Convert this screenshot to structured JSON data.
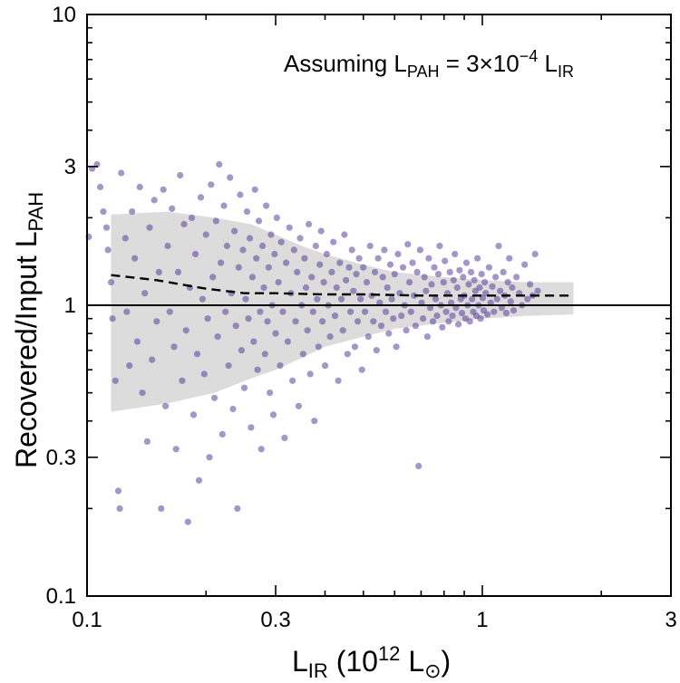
{
  "chart_data": {
    "type": "scatter",
    "title": "",
    "xlabel": {
      "main": "L",
      "sub": "IR",
      "rest": " (10",
      "sup": "12",
      "unit": " L",
      "symbol": "⊙",
      "close": ")"
    },
    "ylabel": {
      "main": "Recovered/Input L",
      "sub": "PAH"
    },
    "annotation": {
      "pre": "Assuming L",
      "sub1": "PAH",
      "mid": " = 3×10",
      "sup": "−4",
      "post": " L",
      "sub2": "IR"
    },
    "xscale": "log",
    "yscale": "log",
    "xlim": [
      0.1,
      3
    ],
    "ylim": [
      0.1,
      10
    ],
    "xticks": [
      {
        "v": 0.1,
        "label": "0.1"
      },
      {
        "v": 0.3,
        "label": "0.3"
      },
      {
        "v": 1,
        "label": "1"
      },
      {
        "v": 3,
        "label": "3"
      }
    ],
    "yticks": [
      {
        "v": 0.1,
        "label": "0.1"
      },
      {
        "v": 0.3,
        "label": "0.3"
      },
      {
        "v": 1,
        "label": "1"
      },
      {
        "v": 3,
        "label": "3"
      },
      {
        "v": 10,
        "label": "10"
      }
    ],
    "grid": false,
    "reference_line_y": 1,
    "colors": {
      "points": "#5b3f9a",
      "band": "#dcdcdc",
      "median": "#000000",
      "reference": "#000000"
    },
    "band": {
      "x": [
        0.115,
        0.16,
        0.21,
        0.26,
        0.3,
        0.35,
        0.4,
        0.5,
        0.6,
        0.8,
        1.0,
        1.3,
        1.7
      ],
      "upper": [
        2.05,
        2.1,
        2.0,
        1.9,
        1.75,
        1.6,
        1.5,
        1.38,
        1.3,
        1.25,
        1.22,
        1.2,
        1.2
      ],
      "lower": [
        0.43,
        0.46,
        0.5,
        0.56,
        0.6,
        0.66,
        0.72,
        0.78,
        0.83,
        0.87,
        0.9,
        0.92,
        0.93
      ]
    },
    "median": {
      "x": [
        0.115,
        0.15,
        0.2,
        0.25,
        0.3,
        0.4,
        0.5,
        0.7,
        1.0,
        1.3,
        1.7
      ],
      "y": [
        1.27,
        1.22,
        1.14,
        1.1,
        1.1,
        1.09,
        1.09,
        1.08,
        1.08,
        1.08,
        1.08
      ]
    },
    "points": [
      [
        0.101,
        1.72
      ],
      [
        0.103,
        2.95
      ],
      [
        0.106,
        3.05
      ],
      [
        0.108,
        2.55
      ],
      [
        0.11,
        2.1
      ],
      [
        0.112,
        1.85
      ],
      [
        0.113,
        1.55
      ],
      [
        0.115,
        1.2
      ],
      [
        0.116,
        0.9
      ],
      [
        0.118,
        0.55
      ],
      [
        0.12,
        0.23
      ],
      [
        0.121,
        0.2
      ],
      [
        0.122,
        2.85
      ],
      [
        0.125,
        1.7
      ],
      [
        0.126,
        0.95
      ],
      [
        0.128,
        0.62
      ],
      [
        0.13,
        2.1
      ],
      [
        0.132,
        1.45
      ],
      [
        0.134,
        0.75
      ],
      [
        0.136,
        2.55
      ],
      [
        0.138,
        0.5
      ],
      [
        0.14,
        1.1
      ],
      [
        0.142,
        0.34
      ],
      [
        0.144,
        1.85
      ],
      [
        0.146,
        0.65
      ],
      [
        0.148,
        2.3
      ],
      [
        0.15,
        0.88
      ],
      [
        0.152,
        1.3
      ],
      [
        0.154,
        0.2
      ],
      [
        0.156,
        2.5
      ],
      [
        0.158,
        0.45
      ],
      [
        0.16,
        1.6
      ],
      [
        0.162,
        0.95
      ],
      [
        0.164,
        2.15
      ],
      [
        0.166,
        0.72
      ],
      [
        0.168,
        0.32
      ],
      [
        0.17,
        1.3
      ],
      [
        0.172,
        2.8
      ],
      [
        0.174,
        0.55
      ],
      [
        0.176,
        1.9
      ],
      [
        0.178,
        0.82
      ],
      [
        0.18,
        0.18
      ],
      [
        0.182,
        1.15
      ],
      [
        0.184,
        2.0
      ],
      [
        0.186,
        0.42
      ],
      [
        0.188,
        1.5
      ],
      [
        0.19,
        0.68
      ],
      [
        0.192,
        0.25
      ],
      [
        0.194,
        2.35
      ],
      [
        0.196,
        1.05
      ],
      [
        0.198,
        0.58
      ],
      [
        0.2,
        1.75
      ],
      [
        0.202,
        0.9
      ],
      [
        0.204,
        0.3
      ],
      [
        0.206,
        2.6
      ],
      [
        0.208,
        1.25
      ],
      [
        0.21,
        0.48
      ],
      [
        0.212,
        1.95
      ],
      [
        0.214,
        0.78
      ],
      [
        0.216,
        3.05
      ],
      [
        0.218,
        1.4
      ],
      [
        0.22,
        0.36
      ],
      [
        0.222,
        2.2
      ],
      [
        0.224,
        0.95
      ],
      [
        0.226,
        1.6
      ],
      [
        0.228,
        0.62
      ],
      [
        0.23,
        2.75
      ],
      [
        0.232,
        1.1
      ],
      [
        0.234,
        0.44
      ],
      [
        0.236,
        1.8
      ],
      [
        0.238,
        0.85
      ],
      [
        0.24,
        0.2
      ],
      [
        0.242,
        1.35
      ],
      [
        0.244,
        2.4
      ],
      [
        0.246,
        0.7
      ],
      [
        0.248,
        1.55
      ],
      [
        0.25,
        0.52
      ],
      [
        0.252,
        1.05
      ],
      [
        0.254,
        2.1
      ],
      [
        0.256,
        0.9
      ],
      [
        0.258,
        1.7
      ],
      [
        0.26,
        0.38
      ],
      [
        0.262,
        1.25
      ],
      [
        0.264,
        0.75
      ],
      [
        0.266,
        2.5
      ],
      [
        0.268,
        1.45
      ],
      [
        0.27,
        0.6
      ],
      [
        0.272,
        1.95
      ],
      [
        0.274,
        0.95
      ],
      [
        0.276,
        0.32
      ],
      [
        0.278,
        1.6
      ],
      [
        0.28,
        1.15
      ],
      [
        0.282,
        0.68
      ],
      [
        0.284,
        2.2
      ],
      [
        0.286,
        0.88
      ],
      [
        0.288,
        1.35
      ],
      [
        0.29,
        0.5
      ],
      [
        0.292,
        1.75
      ],
      [
        0.294,
        1.0
      ],
      [
        0.296,
        0.42
      ],
      [
        0.298,
        1.5
      ],
      [
        0.3,
        0.8
      ],
      [
        0.302,
        2.0
      ],
      [
        0.305,
        1.2
      ],
      [
        0.308,
        0.62
      ],
      [
        0.31,
        1.65
      ],
      [
        0.313,
        0.95
      ],
      [
        0.316,
        0.35
      ],
      [
        0.319,
        1.4
      ],
      [
        0.322,
        0.75
      ],
      [
        0.325,
        1.85
      ],
      [
        0.328,
        1.1
      ],
      [
        0.331,
        0.55
      ],
      [
        0.334,
        1.55
      ],
      [
        0.337,
        0.88
      ],
      [
        0.34,
        1.3
      ],
      [
        0.343,
        0.45
      ],
      [
        0.346,
        1.7
      ],
      [
        0.349,
        1.0
      ],
      [
        0.352,
        0.68
      ],
      [
        0.355,
        1.45
      ],
      [
        0.358,
        1.15
      ],
      [
        0.361,
        0.82
      ],
      [
        0.364,
        1.9
      ],
      [
        0.367,
        0.58
      ],
      [
        0.37,
        1.25
      ],
      [
        0.373,
        0.95
      ],
      [
        0.376,
        0.4
      ],
      [
        0.379,
        1.6
      ],
      [
        0.382,
        1.05
      ],
      [
        0.385,
        0.72
      ],
      [
        0.388,
        1.38
      ],
      [
        0.391,
        1.8
      ],
      [
        0.394,
        0.88
      ],
      [
        0.397,
        1.2
      ],
      [
        0.4,
        0.62
      ],
      [
        0.404,
        1.5
      ],
      [
        0.408,
        1.0
      ],
      [
        0.412,
        0.78
      ],
      [
        0.416,
        1.3
      ],
      [
        0.42,
        1.65
      ],
      [
        0.424,
        0.92
      ],
      [
        0.428,
        1.15
      ],
      [
        0.432,
        0.55
      ],
      [
        0.436,
        1.4
      ],
      [
        0.44,
        1.05
      ],
      [
        0.444,
        0.82
      ],
      [
        0.448,
        1.75
      ],
      [
        0.452,
        1.22
      ],
      [
        0.456,
        0.68
      ],
      [
        0.46,
        1.35
      ],
      [
        0.464,
        0.95
      ],
      [
        0.468,
        1.55
      ],
      [
        0.472,
        1.12
      ],
      [
        0.476,
        0.72
      ],
      [
        0.48,
        1.28
      ],
      [
        0.484,
        0.88
      ],
      [
        0.488,
        1.45
      ],
      [
        0.492,
        1.05
      ],
      [
        0.496,
        0.6
      ],
      [
        0.5,
        1.35
      ],
      [
        0.505,
        0.95
      ],
      [
        0.51,
        1.2
      ],
      [
        0.515,
        0.78
      ],
      [
        0.52,
        1.6
      ],
      [
        0.525,
        1.08
      ],
      [
        0.53,
        0.88
      ],
      [
        0.535,
        1.3
      ],
      [
        0.54,
        0.7
      ],
      [
        0.545,
        1.45
      ],
      [
        0.55,
        1.02
      ],
      [
        0.555,
        0.85
      ],
      [
        0.56,
        1.25
      ],
      [
        0.565,
        1.55
      ],
      [
        0.57,
        0.95
      ],
      [
        0.575,
        1.15
      ],
      [
        0.58,
        0.8
      ],
      [
        0.585,
        1.38
      ],
      [
        0.59,
        1.05
      ],
      [
        0.595,
        0.9
      ],
      [
        0.6,
        1.28
      ],
      [
        0.606,
        0.72
      ],
      [
        0.612,
        1.5
      ],
      [
        0.618,
        1.1
      ],
      [
        0.624,
        0.92
      ],
      [
        0.63,
        1.35
      ],
      [
        0.636,
        1.0
      ],
      [
        0.642,
        0.82
      ],
      [
        0.648,
        1.62
      ],
      [
        0.654,
        1.2
      ],
      [
        0.66,
        0.95
      ],
      [
        0.666,
        1.4
      ],
      [
        0.672,
        1.08
      ],
      [
        0.678,
        0.85
      ],
      [
        0.684,
        1.3
      ],
      [
        0.69,
        0.28
      ],
      [
        0.696,
        1.55
      ],
      [
        0.702,
        1.02
      ],
      [
        0.708,
        0.9
      ],
      [
        0.714,
        1.25
      ],
      [
        0.72,
        1.12
      ],
      [
        0.726,
        0.78
      ],
      [
        0.732,
        1.45
      ],
      [
        0.738,
        0.98
      ],
      [
        0.744,
        1.18
      ],
      [
        0.75,
        0.88
      ],
      [
        0.756,
        1.35
      ],
      [
        0.762,
        1.05
      ],
      [
        0.768,
        0.92
      ],
      [
        0.774,
        1.28
      ],
      [
        0.78,
        1.6
      ],
      [
        0.786,
        1.0
      ],
      [
        0.792,
        0.84
      ],
      [
        0.798,
        1.2
      ],
      [
        0.804,
        1.42
      ],
      [
        0.81,
        0.95
      ],
      [
        0.816,
        1.1
      ],
      [
        0.822,
        0.88
      ],
      [
        0.828,
        1.3
      ],
      [
        0.834,
        1.02
      ],
      [
        0.84,
        0.92
      ],
      [
        0.846,
        1.22
      ],
      [
        0.852,
        1.5
      ],
      [
        0.858,
        0.98
      ],
      [
        0.864,
        1.15
      ],
      [
        0.87,
        0.86
      ],
      [
        0.876,
        1.32
      ],
      [
        0.882,
        1.05
      ],
      [
        0.888,
        0.94
      ],
      [
        0.894,
        1.25
      ],
      [
        0.9,
        1.08
      ],
      [
        0.906,
        0.9
      ],
      [
        0.912,
        1.4
      ],
      [
        0.918,
        1.0
      ],
      [
        0.924,
        1.18
      ],
      [
        0.93,
        0.88
      ],
      [
        0.936,
        1.3
      ],
      [
        0.942,
        1.05
      ],
      [
        0.948,
        0.95
      ],
      [
        0.954,
        1.22
      ],
      [
        0.96,
        1.12
      ],
      [
        0.966,
        0.92
      ],
      [
        0.972,
        1.45
      ],
      [
        0.978,
        1.0
      ],
      [
        0.984,
        1.15
      ],
      [
        0.99,
        0.9
      ],
      [
        0.996,
        1.28
      ],
      [
        1.002,
        1.06
      ],
      [
        1.008,
        0.96
      ],
      [
        1.014,
        1.2
      ],
      [
        1.02,
        1.1
      ],
      [
        1.03,
        0.93
      ],
      [
        1.04,
        1.35
      ],
      [
        1.05,
        1.02
      ],
      [
        1.06,
        1.16
      ],
      [
        1.07,
        0.95
      ],
      [
        1.08,
        1.25
      ],
      [
        1.09,
        1.05
      ],
      [
        1.1,
        1.6
      ],
      [
        1.11,
        1.12
      ],
      [
        1.12,
        0.98
      ],
      [
        1.13,
        1.3
      ],
      [
        1.14,
        1.08
      ],
      [
        1.15,
        0.94
      ],
      [
        1.16,
        1.2
      ],
      [
        1.17,
        1.45
      ],
      [
        1.18,
        1.03
      ],
      [
        1.19,
        1.15
      ],
      [
        1.2,
        0.96
      ],
      [
        1.22,
        1.25
      ],
      [
        1.24,
        1.1
      ],
      [
        1.26,
        1.0
      ],
      [
        1.28,
        1.38
      ],
      [
        1.3,
        1.05
      ],
      [
        1.32,
        1.18
      ],
      [
        1.34,
        1.08
      ],
      [
        1.36,
        1.5
      ],
      [
        1.38,
        1.12
      ]
    ]
  }
}
